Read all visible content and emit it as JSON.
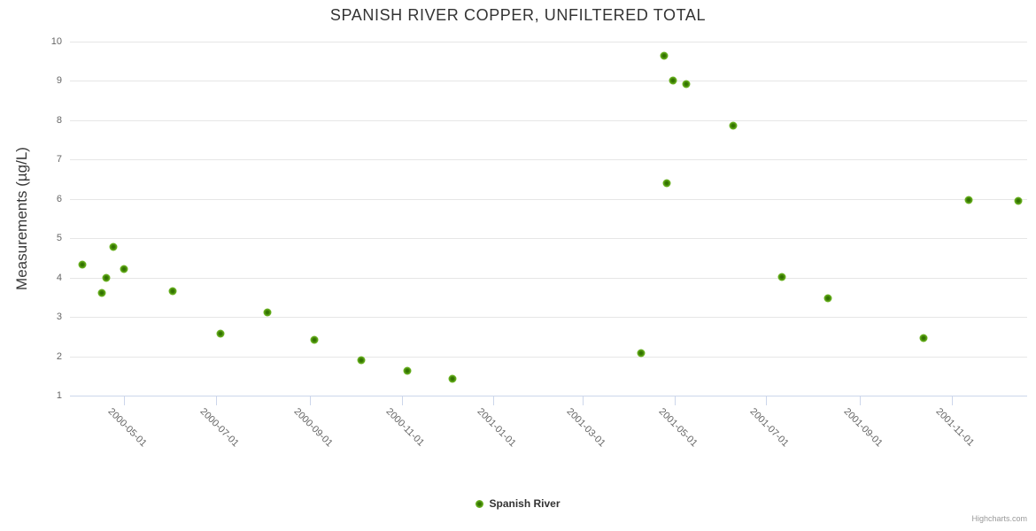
{
  "title": "SPANISH RIVER COPPER, UNFILTERED TOTAL",
  "legend": {
    "label": "Spanish River"
  },
  "credits": "Highcharts.com",
  "colors": {
    "marker_outer": "#77b92d",
    "marker_inner": "#2e6c00",
    "gridline": "#e6e6e6",
    "axis_line": "#ccd6eb",
    "title_text": "#333333",
    "axis_label_text": "#666666",
    "credits_text": "#999999"
  },
  "chart_data": {
    "type": "scatter",
    "title": "SPANISH RIVER COPPER, UNFILTERED TOTAL",
    "xlabel": "",
    "ylabel": "Measurements (µg/L)",
    "ylim": [
      1,
      10
    ],
    "y_ticks": [
      1,
      2,
      3,
      4,
      5,
      6,
      7,
      8,
      9,
      10
    ],
    "x_ticks": [
      "2000-05-01",
      "2000-07-01",
      "2000-09-01",
      "2000-11-01",
      "2001-01-01",
      "2001-03-01",
      "2001-05-01",
      "2001-07-01",
      "2001-09-01",
      "2001-11-01"
    ],
    "x_range": [
      "2000-03-26",
      "2001-12-21"
    ],
    "grid": "horizontal-only",
    "legend_position": "bottom-center",
    "series": [
      {
        "name": "Spanish River",
        "points": [
          {
            "date": "2000-04-03",
            "value": 4.33
          },
          {
            "date": "2000-04-16",
            "value": 3.6
          },
          {
            "date": "2000-04-19",
            "value": 3.99
          },
          {
            "date": "2000-04-24",
            "value": 4.77
          },
          {
            "date": "2000-05-01",
            "value": 4.21
          },
          {
            "date": "2000-06-02",
            "value": 3.66
          },
          {
            "date": "2000-07-04",
            "value": 2.58
          },
          {
            "date": "2000-08-04",
            "value": 3.11
          },
          {
            "date": "2000-09-04",
            "value": 2.42
          },
          {
            "date": "2000-10-05",
            "value": 1.89
          },
          {
            "date": "2000-11-05",
            "value": 1.64
          },
          {
            "date": "2000-12-05",
            "value": 1.43
          },
          {
            "date": "2001-04-09",
            "value": 2.08
          },
          {
            "date": "2001-04-24",
            "value": 9.65
          },
          {
            "date": "2001-04-26",
            "value": 6.41
          },
          {
            "date": "2001-04-30",
            "value": 9.01
          },
          {
            "date": "2001-05-09",
            "value": 8.93
          },
          {
            "date": "2001-06-09",
            "value": 7.87
          },
          {
            "date": "2001-07-11",
            "value": 4.02
          },
          {
            "date": "2001-08-11",
            "value": 3.47
          },
          {
            "date": "2001-10-13",
            "value": 2.46
          },
          {
            "date": "2001-11-12",
            "value": 5.97
          },
          {
            "date": "2001-12-15",
            "value": 5.95
          }
        ]
      }
    ]
  }
}
